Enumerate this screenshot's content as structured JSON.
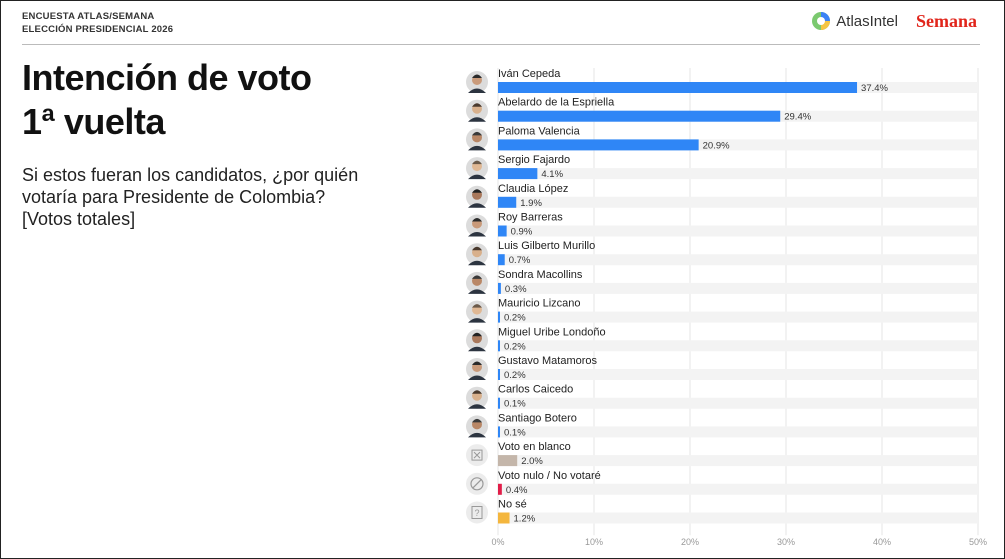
{
  "header": {
    "line1": "ENCUESTA ATLAS/SEMANA",
    "line2": "ELECCIÓN PRESIDENCIAL 2026"
  },
  "logos": {
    "atlas": "AtlasIntel",
    "semana": "Semana"
  },
  "title": {
    "line1": "Intención de voto",
    "line2": "1ª vuelta"
  },
  "question": {
    "line1": "Si estos fueran los candidatos, ¿por quién",
    "line2": "votaría para Presidente de Colombia?",
    "line3": "[Votos totales]"
  },
  "colors": {
    "candidate_bar": "#2f86f6",
    "blank_vote_bar": "#c4b6aa",
    "null_vote_bar": "#e11d48",
    "dont_know_bar": "#f4b63d",
    "track": "#f3f3f3",
    "brand_red": "#e1251b"
  },
  "chart_data": {
    "type": "bar",
    "orientation": "horizontal",
    "categories": [
      "Iván Cepeda",
      "Abelardo de la Espriella",
      "Paloma Valencia",
      "Sergio Fajardo",
      "Claudia López",
      "Roy Barreras",
      "Luis Gilberto Murillo",
      "Sondra Macollins",
      "Mauricio Lizcano",
      "Miguel Uribe Londoño",
      "Gustavo Matamoros",
      "Carlos Caicedo",
      "Santiago Botero",
      "Voto en blanco",
      "Voto nulo / No votaré",
      "No sé"
    ],
    "values": [
      37.4,
      29.4,
      20.9,
      4.1,
      1.9,
      0.9,
      0.7,
      0.3,
      0.2,
      0.2,
      0.2,
      0.1,
      0.1,
      2.0,
      0.4,
      1.2
    ],
    "value_labels": [
      "37.4%",
      "29.4%",
      "20.9%",
      "4.1%",
      "1.9%",
      "0.9%",
      "0.7%",
      "0.3%",
      "0.2%",
      "0.2%",
      "0.2%",
      "0.1%",
      "0.1%",
      "2.0%",
      "0.4%",
      "1.2%"
    ],
    "bar_kind": [
      "candidate",
      "candidate",
      "candidate",
      "candidate",
      "candidate",
      "candidate",
      "candidate",
      "candidate",
      "candidate",
      "candidate",
      "candidate",
      "candidate",
      "candidate",
      "blank",
      "null",
      "unknown"
    ],
    "row_icons": [
      "candidate-photo",
      "candidate-photo",
      "candidate-photo",
      "candidate-photo",
      "candidate-photo",
      "candidate-photo",
      "candidate-photo",
      "candidate-photo",
      "candidate-photo",
      "candidate-photo",
      "candidate-photo",
      "candidate-photo",
      "candidate-photo",
      "blank-ballot-icon",
      "prohibited-icon",
      "question-mark-icon"
    ],
    "xlim": [
      0,
      50
    ],
    "xticks": [
      "0%",
      "10%",
      "20%",
      "30%",
      "40%",
      "50%"
    ],
    "grid": true,
    "title": "",
    "xlabel": "",
    "ylabel": ""
  }
}
